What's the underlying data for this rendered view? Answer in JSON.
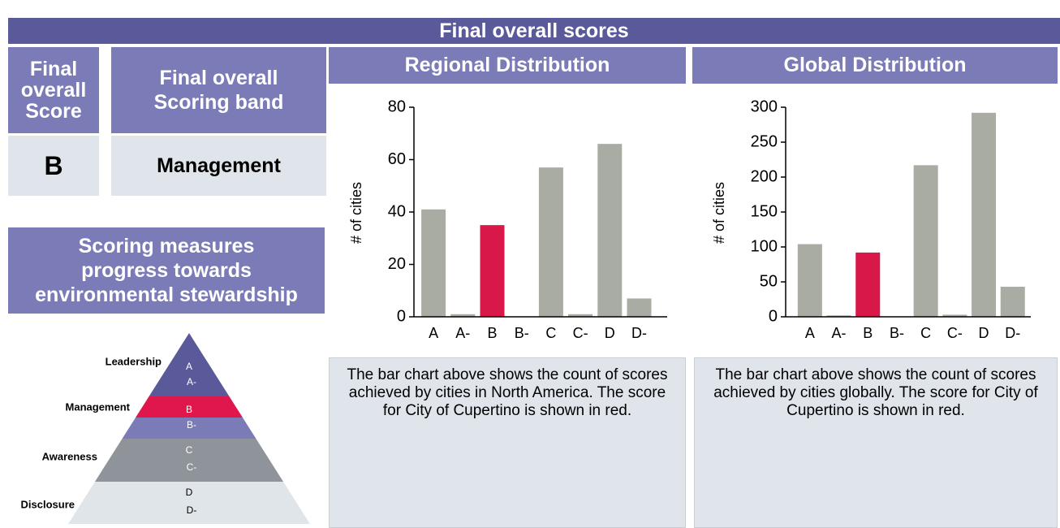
{
  "header": {
    "title": "Final overall scores"
  },
  "score": {
    "heading": [
      "Final",
      "overall",
      "Score"
    ],
    "value": "B"
  },
  "band": {
    "heading": [
      "Final overall",
      "Scoring band"
    ],
    "value": "Management"
  },
  "measures": {
    "lines": [
      "Scoring measures",
      "progress towards",
      "environmental stewardship"
    ]
  },
  "pyramid": {
    "levels": [
      {
        "label": "Leadership",
        "grades": [
          "A",
          "A-"
        ]
      },
      {
        "label": "Management",
        "grades": [
          "B",
          "B-"
        ]
      },
      {
        "label": "Awareness",
        "grades": [
          "C",
          "C-"
        ]
      },
      {
        "label": "Disclosure",
        "grades": [
          "D",
          "D-"
        ]
      }
    ]
  },
  "chart_data": [
    {
      "type": "bar",
      "title": "Regional Distribution",
      "y_label": "# of cities",
      "categories": [
        "A",
        "A-",
        "B",
        "B-",
        "C",
        "C-",
        "D",
        "D-"
      ],
      "values": [
        41,
        1,
        35,
        0,
        57,
        1,
        66,
        7
      ],
      "colors": [
        "#a9aca3",
        "#a9aca3",
        "#d9184a",
        "#a9aca3",
        "#a9aca3",
        "#a9aca3",
        "#a9aca3",
        "#a9aca3"
      ],
      "ylim": [
        0,
        80
      ],
      "yticks": [
        0,
        20,
        40,
        60,
        80
      ],
      "description": "The bar chart above shows the count of scores achieved by cities in North America. The score for City of Cupertino is shown in red."
    },
    {
      "type": "bar",
      "title": "Global Distribution",
      "y_label": "# of cities",
      "categories": [
        "A",
        "A-",
        "B",
        "B-",
        "C",
        "C-",
        "D",
        "D-"
      ],
      "values": [
        104,
        2,
        92,
        0,
        217,
        3,
        292,
        43
      ],
      "colors": [
        "#a9aca3",
        "#a9aca3",
        "#d9184a",
        "#a9aca3",
        "#a9aca3",
        "#a9aca3",
        "#a9aca3",
        "#a9aca3"
      ],
      "ylim": [
        0,
        300
      ],
      "yticks": [
        0,
        50,
        100,
        150,
        200,
        250,
        300
      ],
      "description": "The bar chart above shows the count of scores achieved by cities globally. The score for City of Cupertino is shown in red."
    }
  ]
}
